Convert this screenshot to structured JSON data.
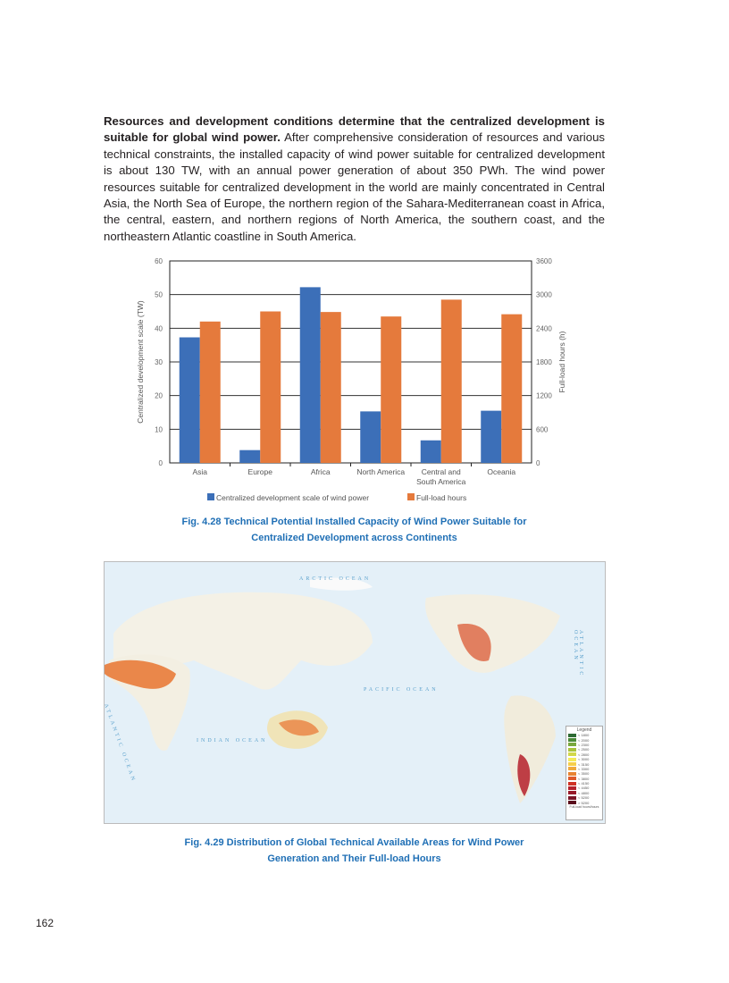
{
  "paragraph": {
    "bold": "Resources and development conditions determine that the centralized development is suitable for global wind power.",
    "rest": " After comprehensive consideration of resources and various technical constraints, the installed capacity of wind power suitable for centralized development is about 130 TW, with an annual power generation of about 350 PWh. The wind power resources suitable for centralized development in the world are mainly concentrated in Central Asia, the North Sea of Europe, the northern region of the Sahara-Mediterranean coast in Africa, the central, eastern, and northern regions of North America, the southern coast, and the northeastern Atlantic coastline in South America."
  },
  "chart_data": {
    "type": "bar",
    "categories": [
      "Asia",
      "Europe",
      "Africa",
      "North America",
      "Central and South America",
      "Oceania"
    ],
    "category_lines": [
      [
        "Asia"
      ],
      [
        "Europe"
      ],
      [
        "Africa"
      ],
      [
        "North America"
      ],
      [
        "Central and",
        "South America"
      ],
      [
        "Oceania"
      ]
    ],
    "series": [
      {
        "name": "Centralized development scale of wind power",
        "axis": "left",
        "color": "#3c6fb8",
        "values": [
          37.3,
          3.8,
          52.2,
          15.3,
          6.7,
          15.5
        ]
      },
      {
        "name": "Full-load hours",
        "axis": "right",
        "color": "#e57a3c",
        "values": [
          2520,
          2700,
          2690,
          2610,
          2910,
          2650
        ]
      }
    ],
    "ylabel": "Centralized development scale (TW)",
    "y2label": "Full-load hours (h)",
    "ylim": [
      0,
      60
    ],
    "y2lim": [
      0,
      3600
    ],
    "yticks": [
      "0",
      "10",
      "20",
      "30",
      "40",
      "50",
      "60"
    ],
    "y2ticks": [
      "0",
      "600",
      "1200",
      "1800",
      "2400",
      "3000",
      "3600"
    ],
    "grid": true,
    "legend_position": "bottom"
  },
  "fig428": {
    "line1": "Fig. 4.28   Technical Potential Installed Capacity of Wind Power Suitable for",
    "line2": "Centralized Development across Continents"
  },
  "map": {
    "oceans": {
      "arctic": "ARCTIC  OCEAN",
      "pacific": "PACIFIC  OCEAN",
      "indian": "INDIAN  OCEAN",
      "atlantic_left": "ATLANTIC  OCEAN",
      "atlantic_right": "ATLANTIC  OCEAN"
    },
    "legend": {
      "title": "Legend",
      "footer": "Full-load hours/hours",
      "items": [
        {
          "label": "< 1800",
          "color": "#2e6b34"
        },
        {
          "label": "< 2000",
          "color": "#4b8a3a"
        },
        {
          "label": "< 2300",
          "color": "#7aa83e"
        },
        {
          "label": "< 2500",
          "color": "#a8c23c"
        },
        {
          "label": "< 2800",
          "color": "#d2d84a"
        },
        {
          "label": "< 3000",
          "color": "#f3ea5a"
        },
        {
          "label": "< 3150",
          "color": "#f6cf4a"
        },
        {
          "label": "< 3300",
          "color": "#efaa3c"
        },
        {
          "label": "< 3500",
          "color": "#e88432"
        },
        {
          "label": "< 3800",
          "color": "#df5a2a"
        },
        {
          "label": "< 4150",
          "color": "#cf3225"
        },
        {
          "label": "< 4450",
          "color": "#b5202a"
        },
        {
          "label": "< 4800",
          "color": "#981a2a"
        },
        {
          "label": "< 5200",
          "color": "#7a1426"
        },
        {
          "label": "> 5200",
          "color": "#5a0d1c"
        }
      ]
    }
  },
  "fig429": {
    "line1": "Fig. 4.29   Distribution of Global Technical Available Areas for Wind Power",
    "line2": "Generation and Their Full-load Hours"
  },
  "page_number": "162"
}
